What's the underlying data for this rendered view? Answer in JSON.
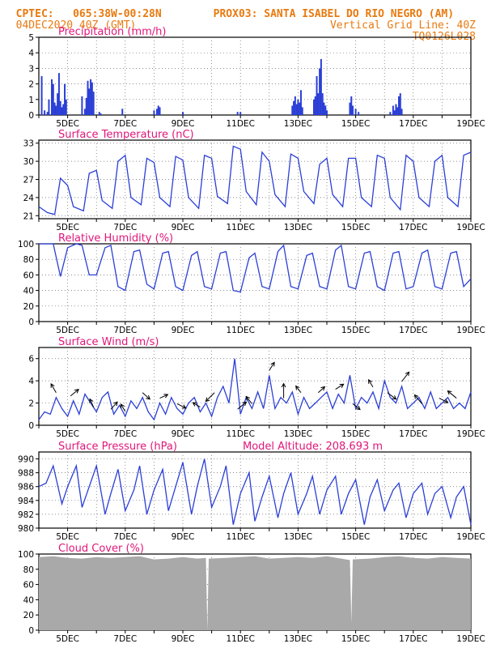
{
  "header": {
    "line1_left": "CPTEC:   065:38W-00:28N",
    "line1_right": "PROX03: SANTA ISABEL DO RIO NEGRO (AM)",
    "line2_left": "04DEC2020 40Z (GMT)",
    "line2_right": "Vertical Grid Line: 40Z",
    "line3_right": "TQ0126L028"
  },
  "colors": {
    "series": "#2b3fd6",
    "title": "#e0167a",
    "cloud": "#a9a9a9",
    "header": "#e87a10",
    "grid": "#666666"
  },
  "x_axis": {
    "start_day": 4,
    "end_day": 19,
    "tick_labels": [
      "5DEC",
      "7DEC",
      "9DEC",
      "11DEC",
      "13DEC",
      "15DEC",
      "17DEC",
      "19DEC"
    ],
    "tick_days": [
      5,
      7,
      9,
      11,
      13,
      15,
      17,
      19
    ]
  },
  "chart_data": [
    {
      "id": "precip",
      "type": "bar",
      "title": "Precipitation (mm/h)",
      "ylim": [
        0,
        5
      ],
      "yticks": [
        "0",
        "1",
        "2",
        "3",
        "4",
        "5"
      ],
      "ytick_values": [
        0,
        1,
        2,
        3,
        4,
        5
      ],
      "grid": true,
      "x": [
        4.1,
        4.2,
        4.3,
        4.35,
        4.45,
        4.5,
        4.55,
        4.6,
        4.65,
        4.7,
        4.75,
        4.8,
        4.85,
        4.9,
        4.95,
        5.5,
        5.6,
        5.65,
        5.7,
        5.75,
        5.8,
        5.85,
        5.9,
        6.1,
        6.15,
        6.9,
        8.0,
        8.1,
        8.15,
        8.2,
        9.0,
        10.9,
        11.0,
        12.8,
        12.85,
        12.9,
        12.95,
        13.0,
        13.05,
        13.1,
        13.15,
        13.55,
        13.6,
        13.65,
        13.7,
        13.75,
        13.8,
        13.85,
        13.9,
        13.95,
        14.0,
        14.8,
        14.85,
        14.9,
        15.0,
        15.1,
        16.2,
        16.3,
        16.35,
        16.4,
        16.45,
        16.5,
        16.55,
        16.6
      ],
      "values": [
        2.5,
        0.3,
        0.2,
        1.0,
        2.3,
        2.0,
        0.8,
        0.6,
        1.4,
        2.7,
        0.9,
        0.5,
        0.7,
        2.0,
        1.0,
        1.2,
        0.4,
        1.1,
        2.2,
        1.7,
        2.3,
        2.1,
        1.5,
        0.2,
        0.1,
        0.4,
        0.3,
        0.4,
        0.6,
        0.5,
        0.2,
        0.2,
        0.2,
        0.6,
        0.9,
        1.2,
        0.7,
        1.0,
        0.8,
        1.6,
        0.5,
        1.0,
        1.2,
        2.5,
        1.4,
        3.0,
        3.6,
        1.4,
        0.8,
        0.6,
        0.3,
        0.8,
        1.2,
        0.6,
        0.4,
        0.2,
        0.2,
        0.6,
        0.3,
        0.7,
        0.5,
        1.2,
        1.4,
        0.4
      ]
    },
    {
      "id": "temp",
      "type": "line",
      "title": "Surface Temperature (nC)",
      "ylim": [
        20.5,
        33.5
      ],
      "yticks": [
        "21",
        "24",
        "27",
        "30",
        "33"
      ],
      "ytick_values": [
        21,
        24,
        27,
        30,
        33
      ],
      "grid": true,
      "x": [
        4.0,
        4.3,
        4.55,
        4.75,
        5.0,
        5.2,
        5.55,
        5.75,
        6.0,
        6.2,
        6.55,
        6.75,
        7.0,
        7.2,
        7.55,
        7.75,
        8.0,
        8.2,
        8.55,
        8.75,
        9.0,
        9.2,
        9.55,
        9.75,
        10.0,
        10.2,
        10.55,
        10.75,
        11.0,
        11.2,
        11.55,
        11.75,
        12.0,
        12.2,
        12.55,
        12.75,
        13.0,
        13.2,
        13.55,
        13.75,
        14.0,
        14.2,
        14.55,
        14.75,
        15.0,
        15.2,
        15.55,
        15.75,
        16.0,
        16.2,
        16.55,
        16.75,
        17.0,
        17.2,
        17.55,
        17.75,
        18.0,
        18.2,
        18.55,
        18.75,
        19.0
      ],
      "values": [
        22.5,
        21.5,
        21.2,
        27.2,
        26.0,
        22.5,
        21.8,
        28.0,
        28.5,
        23.5,
        22.2,
        30.0,
        31.0,
        24.0,
        22.8,
        30.5,
        29.8,
        24.0,
        22.5,
        30.8,
        30.2,
        24.0,
        22.2,
        31.0,
        30.5,
        24.2,
        23.0,
        32.5,
        32.0,
        25.0,
        22.8,
        31.5,
        30.0,
        24.5,
        22.5,
        31.2,
        30.5,
        25.0,
        23.0,
        29.5,
        30.5,
        24.5,
        22.5,
        30.5,
        30.5,
        24.0,
        22.5,
        31.0,
        30.5,
        24.0,
        22.0,
        31.0,
        30.0,
        24.0,
        22.5,
        30.0,
        31.0,
        24.0,
        22.5,
        31.0,
        31.5
      ]
    },
    {
      "id": "rh",
      "type": "line",
      "title": "Relative Humidity (%)",
      "ylim": [
        0,
        100
      ],
      "yticks": [
        "0",
        "20",
        "40",
        "60",
        "80",
        "100"
      ],
      "ytick_values": [
        0,
        20,
        40,
        60,
        80,
        100
      ],
      "grid": true,
      "x": [
        4.0,
        4.5,
        4.75,
        5.0,
        5.3,
        5.5,
        5.75,
        6.0,
        6.3,
        6.5,
        6.75,
        7.0,
        7.3,
        7.5,
        7.75,
        8.0,
        8.3,
        8.5,
        8.75,
        9.0,
        9.3,
        9.5,
        9.75,
        10.0,
        10.3,
        10.5,
        10.75,
        11.0,
        11.3,
        11.5,
        11.75,
        12.0,
        12.3,
        12.5,
        12.75,
        13.0,
        13.3,
        13.5,
        13.75,
        14.0,
        14.3,
        14.5,
        14.75,
        15.0,
        15.3,
        15.5,
        15.75,
        16.0,
        16.3,
        16.5,
        16.75,
        17.0,
        17.3,
        17.5,
        17.75,
        18.0,
        18.3,
        18.5,
        18.75,
        19.0
      ],
      "values": [
        100,
        100,
        58,
        95,
        100,
        98,
        60,
        60,
        95,
        98,
        45,
        40,
        90,
        92,
        48,
        42,
        88,
        90,
        45,
        40,
        85,
        90,
        45,
        42,
        88,
        90,
        40,
        38,
        82,
        88,
        45,
        42,
        90,
        98,
        45,
        42,
        85,
        88,
        45,
        42,
        92,
        98,
        45,
        42,
        88,
        90,
        45,
        40,
        88,
        90,
        42,
        45,
        88,
        92,
        45,
        42,
        88,
        90,
        45,
        55
      ]
    },
    {
      "id": "wind",
      "type": "line",
      "title": "Surface Wind (m/s)",
      "ylim": [
        0,
        7
      ],
      "yticks": [
        "0",
        "2",
        "4",
        "6"
      ],
      "ytick_values": [
        0,
        2,
        4,
        6
      ],
      "grid": true,
      "x": [
        4.0,
        4.2,
        4.4,
        4.6,
        4.8,
        5.0,
        5.2,
        5.4,
        5.6,
        5.8,
        6.0,
        6.2,
        6.4,
        6.6,
        6.8,
        7.0,
        7.2,
        7.4,
        7.6,
        7.8,
        8.0,
        8.2,
        8.4,
        8.6,
        8.8,
        9.0,
        9.2,
        9.4,
        9.6,
        9.8,
        10.0,
        10.2,
        10.4,
        10.6,
        10.8,
        11.0,
        11.2,
        11.4,
        11.6,
        11.8,
        12.0,
        12.2,
        12.4,
        12.6,
        12.8,
        13.0,
        13.2,
        13.4,
        13.6,
        13.8,
        14.0,
        14.2,
        14.4,
        14.6,
        14.8,
        15.0,
        15.2,
        15.4,
        15.6,
        15.8,
        16.0,
        16.2,
        16.4,
        16.6,
        16.8,
        17.0,
        17.2,
        17.4,
        17.6,
        17.8,
        18.0,
        18.2,
        18.4,
        18.6,
        18.8,
        19.0
      ],
      "values": [
        0.5,
        1.2,
        1.0,
        2.5,
        1.5,
        0.8,
        2.2,
        1.0,
        2.8,
        2.0,
        1.2,
        2.5,
        3.0,
        1.0,
        1.8,
        0.8,
        2.2,
        1.5,
        2.5,
        1.2,
        0.5,
        2.0,
        1.0,
        2.5,
        1.5,
        1.0,
        2.0,
        2.5,
        1.2,
        2.0,
        0.8,
        2.5,
        3.5,
        2.0,
        6.0,
        1.0,
        2.5,
        1.5,
        3.0,
        1.5,
        4.5,
        1.5,
        2.5,
        2.0,
        3.0,
        1.0,
        2.5,
        1.5,
        2.0,
        2.5,
        3.0,
        1.5,
        2.8,
        2.0,
        4.5,
        1.5,
        2.5,
        2.0,
        3.0,
        1.5,
        4.0,
        2.5,
        2.0,
        3.5,
        1.5,
        2.0,
        2.5,
        1.5,
        3.0,
        1.5,
        2.0,
        2.5,
        1.5,
        2.0,
        1.5,
        3.0
      ],
      "arrows": [
        {
          "x": 4.6,
          "u": -0.35,
          "v": 0.6
        },
        {
          "x": 5.1,
          "u": 0.55,
          "v": 0.45
        },
        {
          "x": 5.9,
          "u": -0.25,
          "v": 0.55
        },
        {
          "x": 6.5,
          "u": 0.45,
          "v": 0.5
        },
        {
          "x": 7.0,
          "u": -0.3,
          "v": 0.5
        },
        {
          "x": 7.6,
          "u": 0.5,
          "v": -0.45
        },
        {
          "x": 8.2,
          "u": 0.55,
          "v": 0.25
        },
        {
          "x": 8.8,
          "u": 0.6,
          "v": -0.3
        },
        {
          "x": 9.6,
          "u": -0.5,
          "v": 0.3
        },
        {
          "x": 10.1,
          "u": -0.6,
          "v": -0.6
        },
        {
          "x": 10.9,
          "u": 0.6,
          "v": 0.5
        },
        {
          "x": 11.4,
          "u": -0.4,
          "v": 0.5
        },
        {
          "x": 12.0,
          "u": 0.35,
          "v": 0.55
        },
        {
          "x": 12.5,
          "u": 0.0,
          "v": 1.0
        },
        {
          "x": 13.1,
          "u": -0.35,
          "v": 0.45
        },
        {
          "x": 13.7,
          "u": 0.45,
          "v": 0.4
        },
        {
          "x": 14.3,
          "u": 0.55,
          "v": 0.35
        },
        {
          "x": 14.9,
          "u": 0.5,
          "v": -0.4
        },
        {
          "x": 15.6,
          "u": -0.3,
          "v": 0.5
        },
        {
          "x": 16.1,
          "u": 0.6,
          "v": -0.45
        },
        {
          "x": 16.6,
          "u": 0.5,
          "v": 0.65
        },
        {
          "x": 17.3,
          "u": -0.5,
          "v": 0.6
        },
        {
          "x": 17.9,
          "u": 0.6,
          "v": -0.3
        },
        {
          "x": 18.5,
          "u": -0.6,
          "v": 0.5
        }
      ]
    },
    {
      "id": "pres",
      "type": "line",
      "title": "Surface Pressure (hPa)",
      "annotation": "Model Altitude: 208.693 m",
      "ylim": [
        980,
        991
      ],
      "yticks": [
        "980",
        "982",
        "984",
        "986",
        "988",
        "990"
      ],
      "ytick_values": [
        980,
        982,
        984,
        986,
        988,
        990
      ],
      "grid": true,
      "x": [
        4.0,
        4.25,
        4.5,
        4.8,
        5.0,
        5.3,
        5.5,
        5.75,
        6.0,
        6.3,
        6.5,
        6.75,
        7.0,
        7.3,
        7.5,
        7.75,
        8.0,
        8.3,
        8.5,
        8.75,
        9.0,
        9.3,
        9.5,
        9.75,
        10.0,
        10.3,
        10.5,
        10.75,
        11.0,
        11.3,
        11.5,
        11.75,
        12.0,
        12.3,
        12.5,
        12.75,
        13.0,
        13.3,
        13.5,
        13.75,
        14.0,
        14.3,
        14.5,
        14.75,
        15.0,
        15.3,
        15.5,
        15.75,
        16.0,
        16.3,
        16.5,
        16.75,
        17.0,
        17.3,
        17.5,
        17.75,
        18.0,
        18.3,
        18.5,
        18.75,
        19.0
      ],
      "values": [
        986.0,
        986.5,
        989.0,
        983.5,
        986.0,
        989.0,
        983.0,
        986.0,
        989.0,
        982.0,
        985.0,
        988.5,
        982.5,
        985.5,
        989.0,
        982.0,
        985.5,
        988.5,
        982.5,
        986.0,
        989.5,
        982.0,
        986.0,
        990.0,
        983.0,
        986.0,
        989.0,
        980.5,
        985.0,
        988.0,
        981.0,
        984.5,
        987.5,
        981.5,
        985.0,
        988.0,
        982.0,
        985.0,
        987.5,
        982.0,
        985.5,
        987.5,
        982.0,
        985.0,
        987.0,
        980.5,
        984.5,
        987.0,
        982.5,
        985.5,
        986.5,
        981.5,
        985.0,
        986.5,
        982.0,
        985.0,
        986.0,
        981.5,
        984.5,
        986.0,
        980.5
      ]
    },
    {
      "id": "cloud",
      "type": "area",
      "title": "Cloud Cover (%)",
      "ylim": [
        0,
        100
      ],
      "yticks": [
        "0",
        "20",
        "40",
        "60",
        "80",
        "100"
      ],
      "ytick_values": [
        0,
        20,
        40,
        60,
        80,
        100
      ],
      "grid": true,
      "x": [
        4.0,
        4.5,
        5.0,
        5.5,
        6.0,
        6.5,
        7.0,
        7.5,
        8.0,
        8.5,
        9.0,
        9.5,
        9.8,
        9.85,
        9.9,
        10.5,
        11.0,
        11.5,
        12.0,
        12.5,
        13.0,
        13.5,
        14.0,
        14.5,
        14.8,
        14.85,
        14.9,
        15.5,
        16.0,
        16.5,
        17.0,
        17.5,
        18.0,
        18.5,
        19.0
      ],
      "values": [
        96,
        97,
        95,
        94,
        96,
        95,
        96,
        97,
        93,
        94,
        96,
        94,
        95,
        0,
        94,
        95,
        96,
        97,
        94,
        95,
        96,
        95,
        97,
        94,
        92,
        10,
        93,
        94,
        96,
        97,
        95,
        94,
        96,
        95,
        94
      ]
    }
  ]
}
